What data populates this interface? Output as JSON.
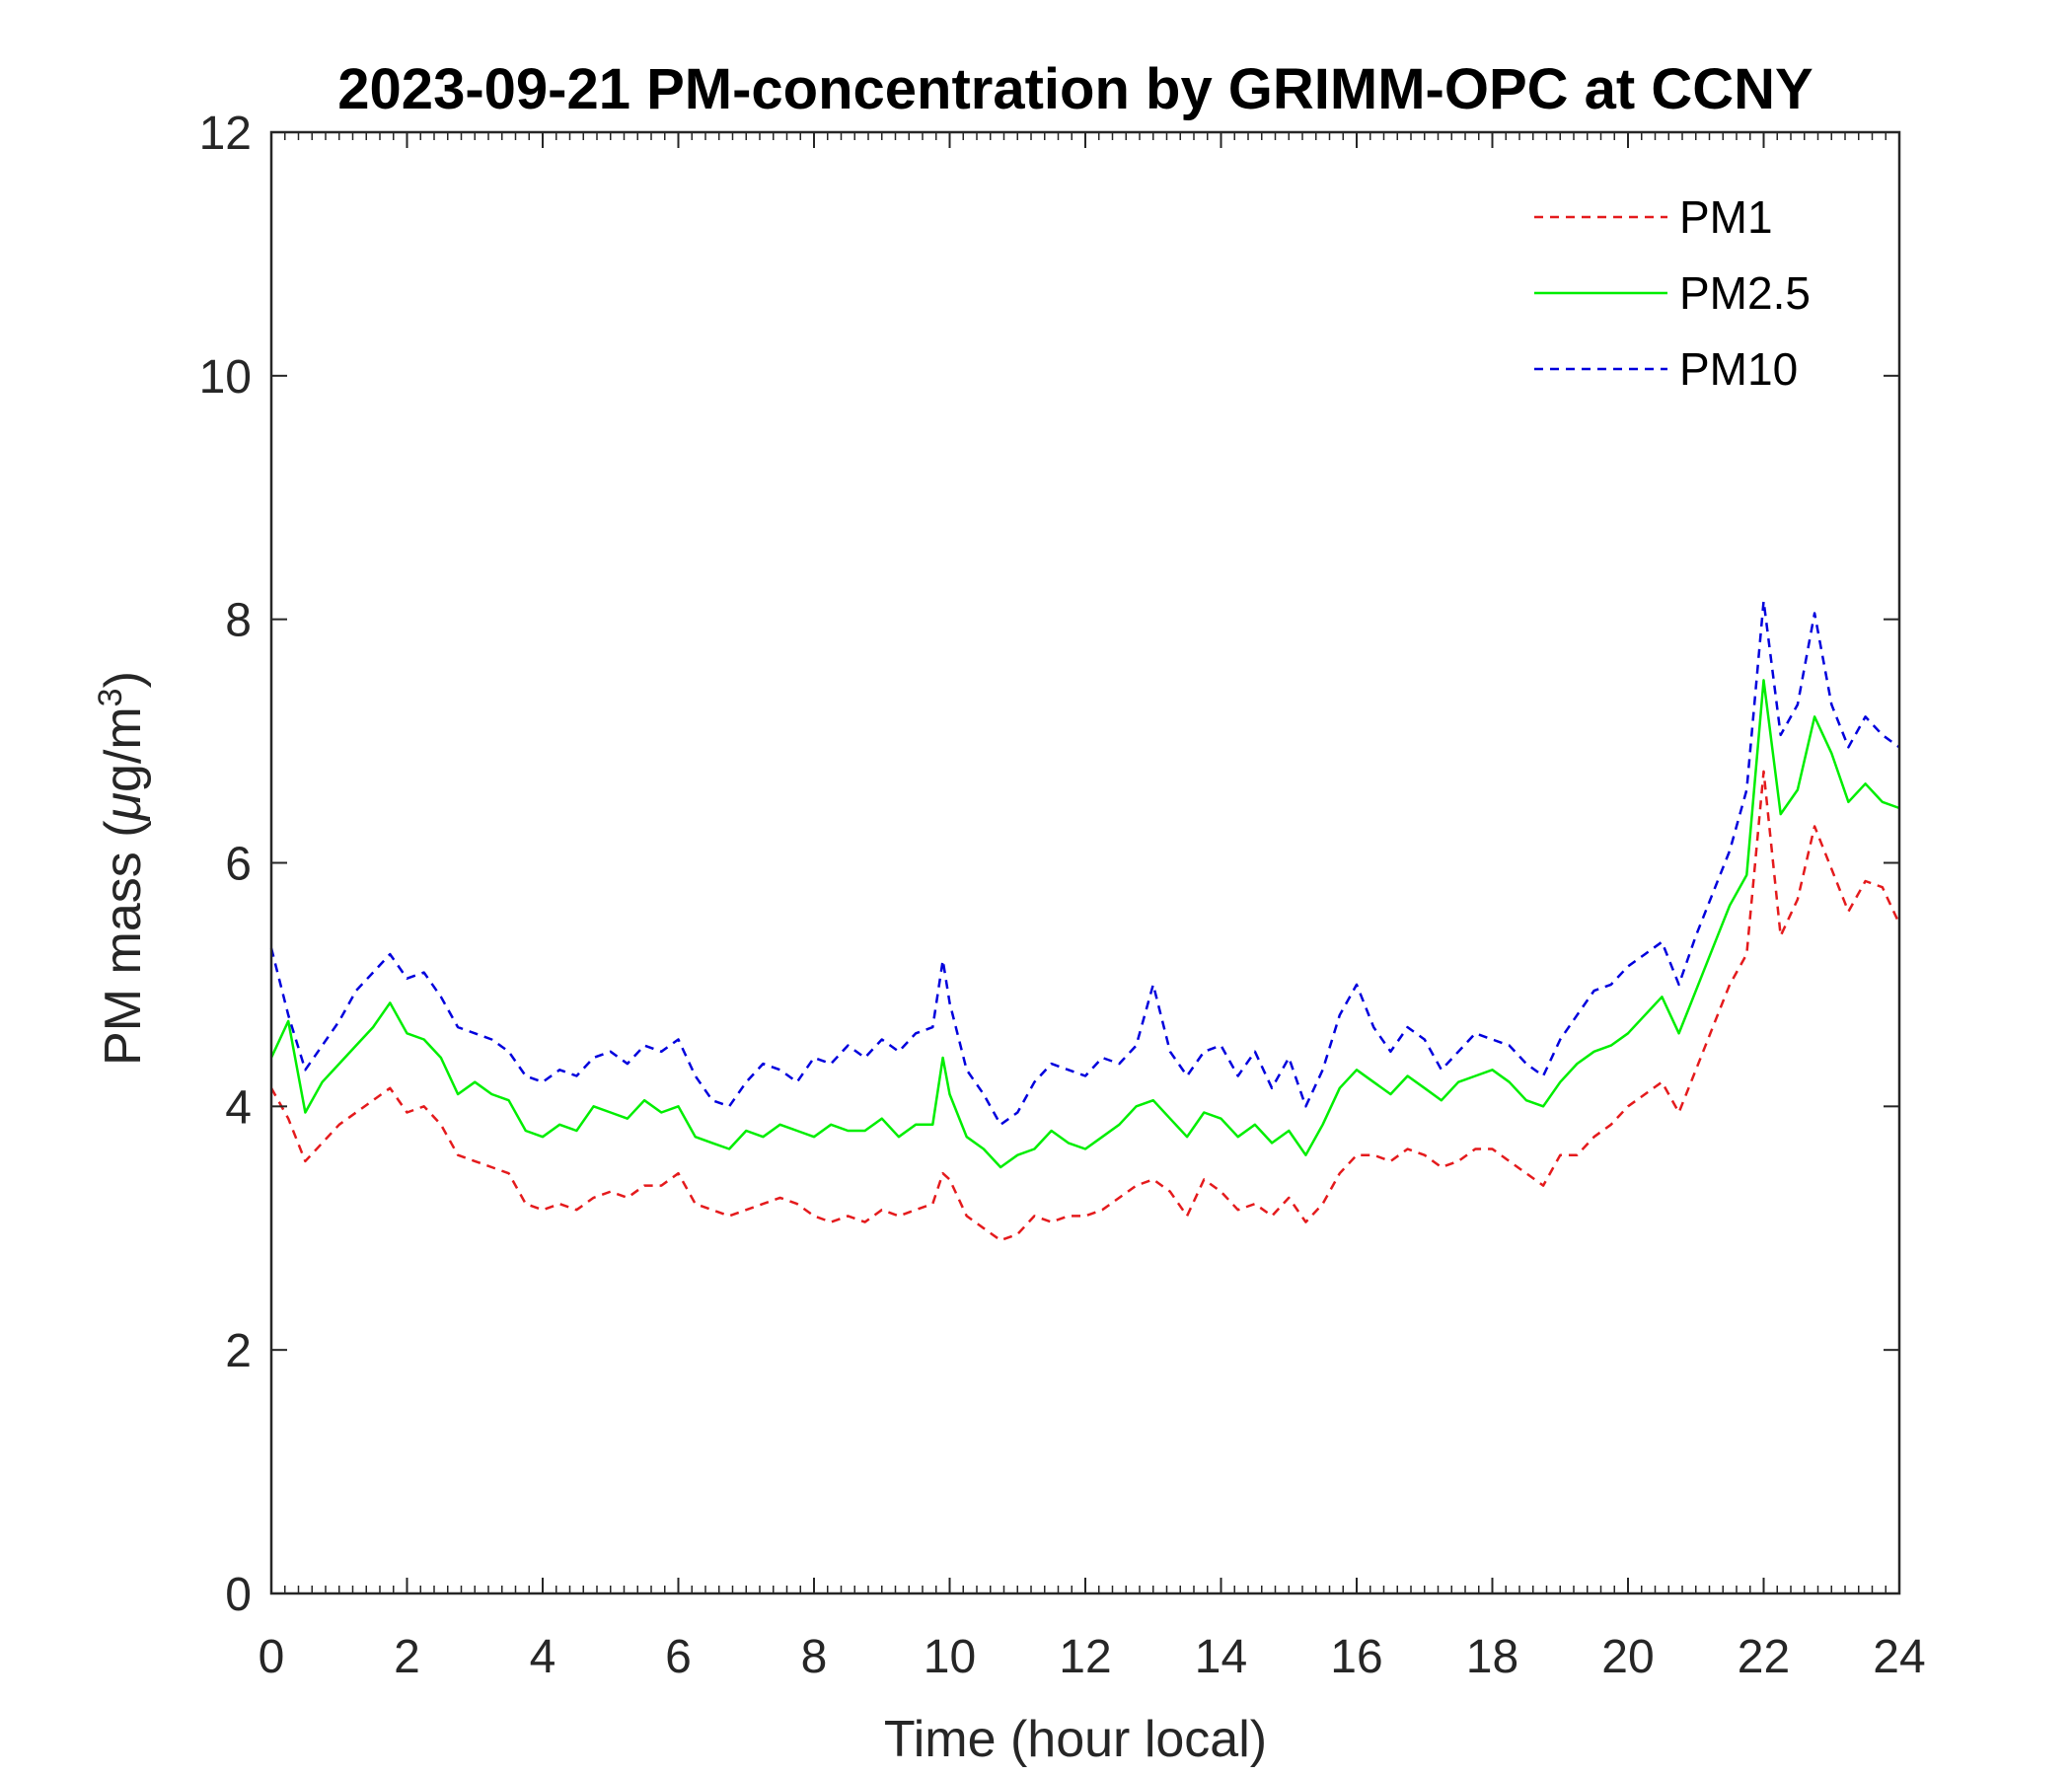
{
  "chart_data": {
    "type": "line",
    "title": "2023-09-21 PM-concentration by GRIMM-OPC at CCNY",
    "xlabel": "Time (hour local)",
    "ylabel": {
      "prefix": "PM mass (",
      "mu": "μ",
      "unit": "g/m",
      "exponent": "3",
      "suffix": ")"
    },
    "xlim": [
      0,
      24
    ],
    "ylim": [
      0,
      12
    ],
    "x_ticks": [
      "0",
      "2",
      "4",
      "6",
      "8",
      "10",
      "12",
      "14",
      "16",
      "18",
      "20",
      "22",
      "24"
    ],
    "y_ticks": [
      "0",
      "2",
      "4",
      "6",
      "8",
      "10",
      "12"
    ],
    "grid": false,
    "legend_position": "top-right",
    "x": [
      0,
      0.25,
      0.5,
      0.75,
      1,
      1.25,
      1.5,
      1.75,
      2,
      2.25,
      2.5,
      2.75,
      3,
      3.25,
      3.5,
      3.75,
      4,
      4.25,
      4.5,
      4.75,
      5,
      5.25,
      5.5,
      5.75,
      6,
      6.25,
      6.5,
      6.75,
      7,
      7.25,
      7.5,
      7.75,
      8,
      8.25,
      8.5,
      8.75,
      9,
      9.25,
      9.5,
      9.75,
      9.9,
      10,
      10.25,
      10.5,
      10.75,
      11,
      11.25,
      11.5,
      11.75,
      12,
      12.25,
      12.5,
      12.75,
      13,
      13.25,
      13.5,
      13.75,
      14,
      14.25,
      14.5,
      14.75,
      15,
      15.25,
      15.5,
      15.75,
      16,
      16.25,
      16.5,
      16.75,
      17,
      17.25,
      17.5,
      17.75,
      18,
      18.25,
      18.5,
      18.75,
      19,
      19.25,
      19.5,
      19.75,
      20,
      20.25,
      20.5,
      20.75,
      21,
      21.25,
      21.5,
      21.75,
      22,
      22.25,
      22.5,
      22.75,
      23,
      23.25,
      23.5,
      23.75,
      24
    ],
    "series": [
      {
        "name": "PM1",
        "color": "#e41a1c",
        "dash": "dashed",
        "values": [
          4.15,
          3.9,
          3.55,
          3.7,
          3.85,
          3.95,
          4.05,
          4.15,
          3.95,
          4.0,
          3.85,
          3.6,
          3.55,
          3.5,
          3.45,
          3.2,
          3.15,
          3.2,
          3.15,
          3.25,
          3.3,
          3.25,
          3.35,
          3.35,
          3.45,
          3.2,
          3.15,
          3.1,
          3.15,
          3.2,
          3.25,
          3.2,
          3.1,
          3.05,
          3.1,
          3.05,
          3.15,
          3.1,
          3.15,
          3.2,
          3.45,
          3.4,
          3.1,
          3.0,
          2.9,
          2.95,
          3.1,
          3.05,
          3.1,
          3.1,
          3.15,
          3.25,
          3.35,
          3.4,
          3.3,
          3.1,
          3.4,
          3.3,
          3.15,
          3.2,
          3.1,
          3.25,
          3.05,
          3.2,
          3.45,
          3.6,
          3.6,
          3.55,
          3.65,
          3.6,
          3.5,
          3.55,
          3.65,
          3.65,
          3.55,
          3.45,
          3.35,
          3.6,
          3.6,
          3.75,
          3.85,
          4.0,
          4.1,
          4.2,
          3.95,
          4.3,
          4.65,
          5.0,
          5.25,
          6.75,
          5.4,
          5.7,
          6.3,
          5.95,
          5.6,
          5.85,
          5.8,
          5.5
        ]
      },
      {
        "name": "PM2.5",
        "color": "#00ee00",
        "dash": "solid",
        "values": [
          4.4,
          4.7,
          3.95,
          4.2,
          4.35,
          4.5,
          4.65,
          4.85,
          4.6,
          4.55,
          4.4,
          4.1,
          4.2,
          4.1,
          4.05,
          3.8,
          3.75,
          3.85,
          3.8,
          4.0,
          3.95,
          3.9,
          4.05,
          3.95,
          4.0,
          3.75,
          3.7,
          3.65,
          3.8,
          3.75,
          3.85,
          3.8,
          3.75,
          3.85,
          3.8,
          3.8,
          3.9,
          3.75,
          3.85,
          3.85,
          4.4,
          4.1,
          3.75,
          3.65,
          3.5,
          3.6,
          3.65,
          3.8,
          3.7,
          3.65,
          3.75,
          3.85,
          4.0,
          4.05,
          3.9,
          3.75,
          3.95,
          3.9,
          3.75,
          3.85,
          3.7,
          3.8,
          3.6,
          3.85,
          4.15,
          4.3,
          4.2,
          4.1,
          4.25,
          4.15,
          4.05,
          4.2,
          4.25,
          4.3,
          4.2,
          4.05,
          4.0,
          4.2,
          4.35,
          4.45,
          4.5,
          4.6,
          4.75,
          4.9,
          4.6,
          4.95,
          5.3,
          5.65,
          5.9,
          7.5,
          6.4,
          6.6,
          7.2,
          6.9,
          6.5,
          6.65,
          6.5,
          6.45
        ]
      },
      {
        "name": "PM10",
        "color": "#0000dd",
        "dash": "dashed",
        "values": [
          5.3,
          4.75,
          4.3,
          4.5,
          4.7,
          4.95,
          5.1,
          5.25,
          5.05,
          5.1,
          4.9,
          4.65,
          4.6,
          4.55,
          4.45,
          4.25,
          4.2,
          4.3,
          4.25,
          4.4,
          4.45,
          4.35,
          4.5,
          4.45,
          4.55,
          4.25,
          4.05,
          4.0,
          4.2,
          4.35,
          4.3,
          4.2,
          4.4,
          4.35,
          4.5,
          4.4,
          4.55,
          4.45,
          4.6,
          4.65,
          5.2,
          4.85,
          4.3,
          4.1,
          3.85,
          3.95,
          4.2,
          4.35,
          4.3,
          4.25,
          4.4,
          4.35,
          4.5,
          5.0,
          4.45,
          4.25,
          4.45,
          4.5,
          4.25,
          4.45,
          4.15,
          4.4,
          4.0,
          4.3,
          4.75,
          5.0,
          4.65,
          4.45,
          4.65,
          4.55,
          4.3,
          4.45,
          4.6,
          4.55,
          4.5,
          4.35,
          4.25,
          4.55,
          4.75,
          4.95,
          5.0,
          5.15,
          5.25,
          5.35,
          5.0,
          5.4,
          5.75,
          6.1,
          6.6,
          8.15,
          7.05,
          7.3,
          8.05,
          7.3,
          6.95,
          7.2,
          7.05,
          6.95
        ]
      }
    ]
  }
}
